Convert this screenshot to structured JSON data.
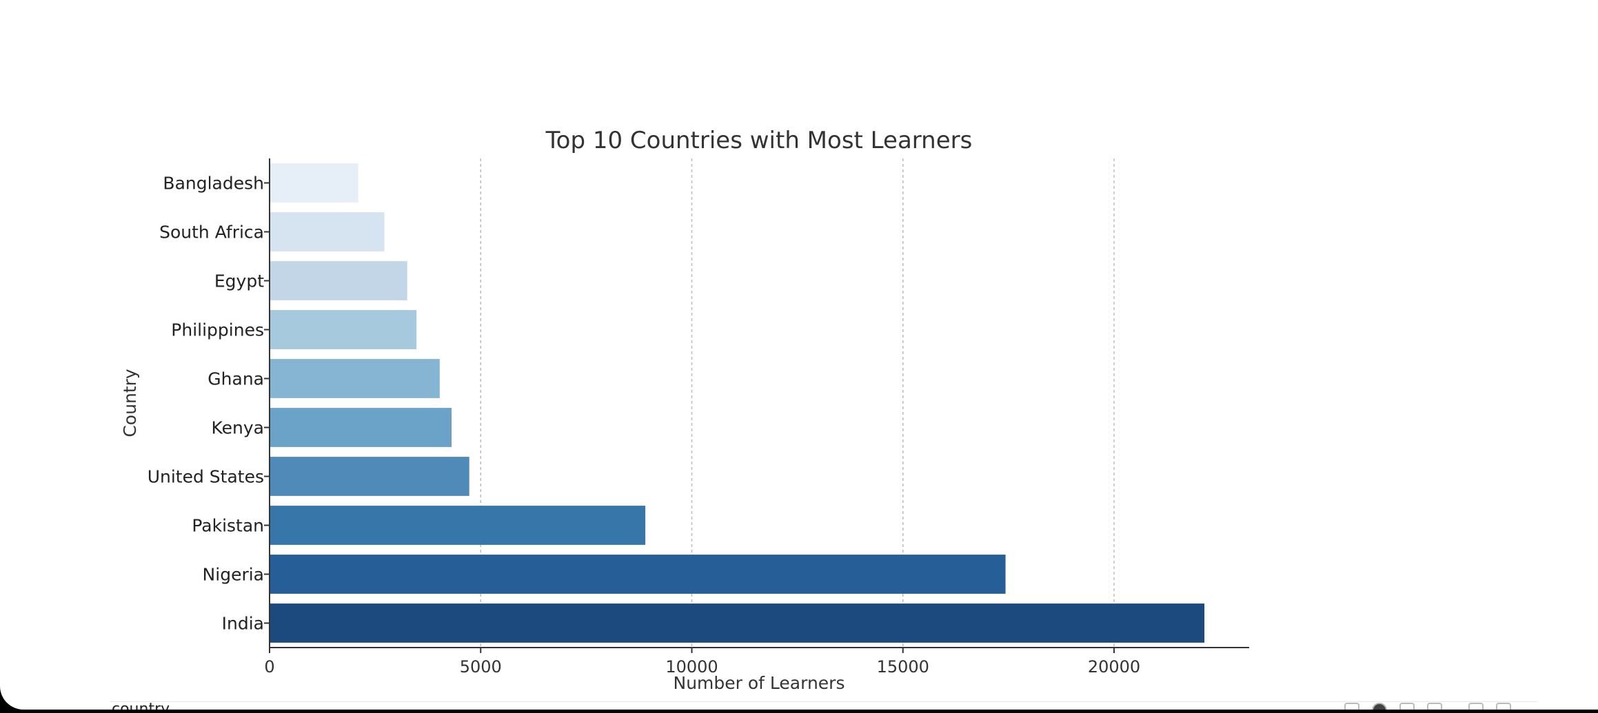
{
  "chart_data": {
    "type": "bar",
    "orientation": "horizontal",
    "title": "Top 10 Countries with Most Learners",
    "xlabel": "Number of Learners",
    "ylabel": "Country",
    "categories": [
      "Bangladesh",
      "South Africa",
      "Egypt",
      "Philippines",
      "Ghana",
      "Kenya",
      "United States",
      "Pakistan",
      "Nigeria",
      "India"
    ],
    "values": [
      2100,
      2720,
      3260,
      3480,
      4030,
      4310,
      4730,
      8900,
      17430,
      22140
    ],
    "colors": [
      "#e6eef7",
      "#d6e3f0",
      "#c2d6e7",
      "#a6c9dd",
      "#86b5d3",
      "#6ba2c7",
      "#4f8ab8",
      "#3776a9",
      "#265f97",
      "#1c4a7e"
    ],
    "xlim": [
      0,
      23200
    ],
    "xticks": [
      0,
      5000,
      10000,
      15000,
      20000
    ],
    "grid": "x-dashed",
    "legend": "none"
  },
  "below": {
    "label": "country"
  }
}
